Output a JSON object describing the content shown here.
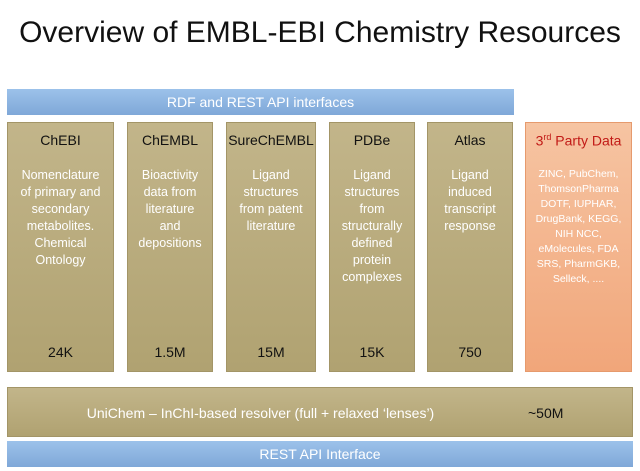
{
  "title": "Overview of EMBL-EBI Chemistry Resources",
  "rdf_bar": "RDF and REST API interfaces",
  "resources": [
    {
      "name": "ChEBI",
      "description": [
        "Nomenclature",
        "of primary and",
        "secondary",
        "metabolites.",
        "Chemical",
        "Ontology"
      ],
      "count": "24K"
    },
    {
      "name": "ChEMBL",
      "description": [
        "Bioactivity",
        "data from",
        "literature",
        "and",
        "depositions"
      ],
      "count": "1.5M"
    },
    {
      "name": "SureChEMBL",
      "description": [
        "Ligand",
        "structures",
        "from patent",
        "literature"
      ],
      "count": "15M"
    },
    {
      "name": "PDBe",
      "description": [
        "Ligand",
        "structures",
        "from",
        "structurally",
        "defined",
        "protein",
        "complexes"
      ],
      "count": "15K"
    },
    {
      "name": "Atlas",
      "description": [
        "Ligand",
        "induced",
        "transcript",
        "response"
      ],
      "count": "750"
    }
  ],
  "third_party": {
    "name_prefix": "3",
    "name_sup": "rd",
    "name_suffix": " Party Data",
    "sources": [
      "ZINC, PubChem,",
      "ThomsonPharma",
      "DOTF, IUPHAR,",
      "DrugBank, KEGG,",
      "NIH NCC,",
      "eMolecules, FDA",
      "SRS, PharmGKB,",
      "Selleck, ...."
    ]
  },
  "unichem": {
    "label": "UniChem – InChI-based resolver (full + relaxed ‘lenses’)",
    "count": "~50M"
  },
  "rest_bar": "REST API Interface",
  "colors": {
    "blue_bar": "#8db4e2",
    "resource_box": "#b9ab7d",
    "third_party_box": "#f4b48b",
    "third_party_title": "#c21b17"
  }
}
